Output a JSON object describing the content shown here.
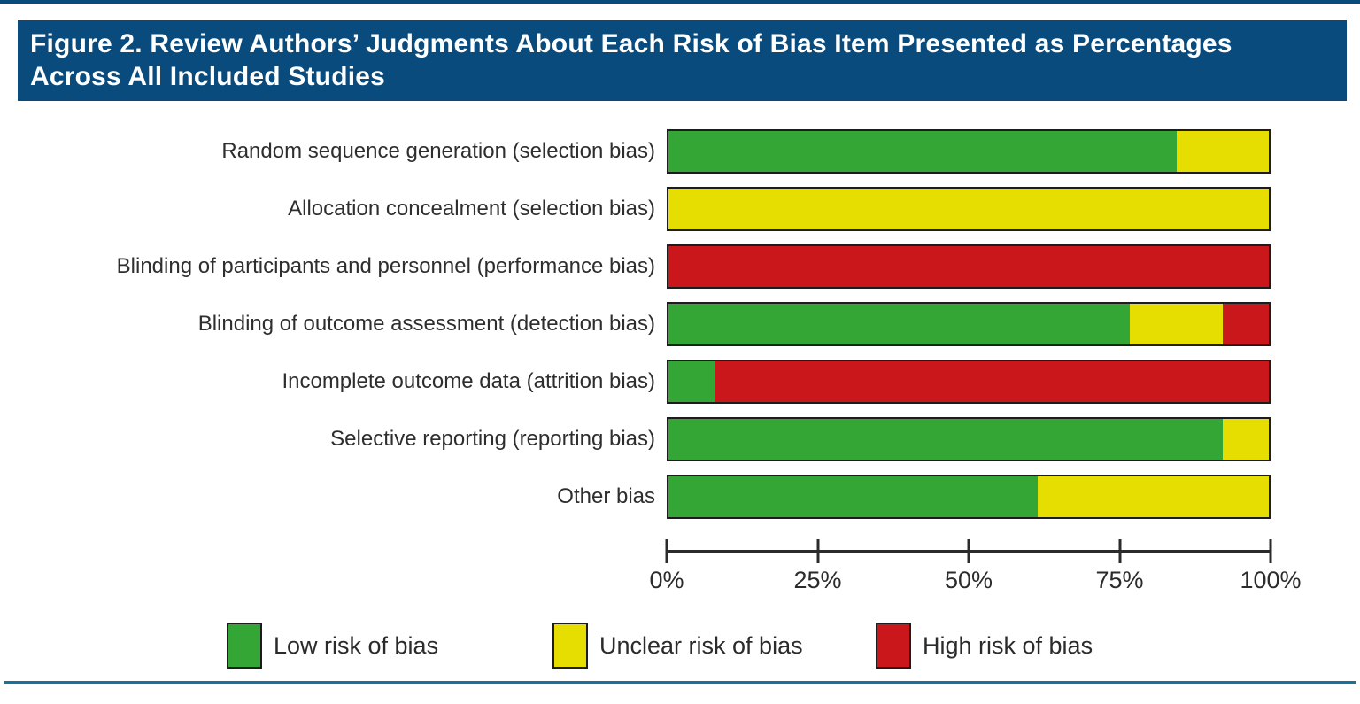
{
  "title_lines": [
    "Figure 2. Review Authors’ Judgments About Each Risk of Bias Item Presented as Percentages",
    "Across All Included Studies"
  ],
  "colors": {
    "header_bar": "#094b7d",
    "bottom_rule": "#1d7099",
    "low_risk": "#34a636",
    "unclear_risk": "#e6de00",
    "high_risk": "#c9171c"
  },
  "chart_data": {
    "type": "bar",
    "orientation": "horizontal-stacked",
    "title": "Figure 2. Review Authors’ Judgments About Each Risk of Bias Item Presented as Percentages Across All Included Studies",
    "categories": [
      "Random sequence generation (selection bias)",
      "Allocation concealment (selection bias)",
      "Blinding of participants and personnel (performance bias)",
      "Blinding of outcome assessment (detection bias)",
      "Incomplete outcome data (attrition bias)",
      "Selective reporting (reporting bias)",
      "Other bias"
    ],
    "series": [
      {
        "key": "low",
        "name": "Low risk of bias",
        "color": "#34a636",
        "values": [
          84.6,
          0,
          0,
          76.9,
          7.7,
          92.3,
          61.5
        ]
      },
      {
        "key": "unclear",
        "name": "Unclear risk of bias",
        "color": "#e6de00",
        "values": [
          15.4,
          100,
          0,
          15.4,
          0,
          7.7,
          38.5
        ]
      },
      {
        "key": "high",
        "name": "High risk of bias",
        "color": "#c9171c",
        "values": [
          0,
          0,
          100,
          7.7,
          92.3,
          0,
          0
        ]
      }
    ],
    "x_ticks": [
      {
        "label": "0%",
        "value": 0
      },
      {
        "label": "25%",
        "value": 25
      },
      {
        "label": "50%",
        "value": 50
      },
      {
        "label": "75%",
        "value": 75
      },
      {
        "label": "100%",
        "value": 100
      }
    ],
    "xlim": [
      0,
      100
    ],
    "grid": false,
    "legend_position": "bottom"
  }
}
